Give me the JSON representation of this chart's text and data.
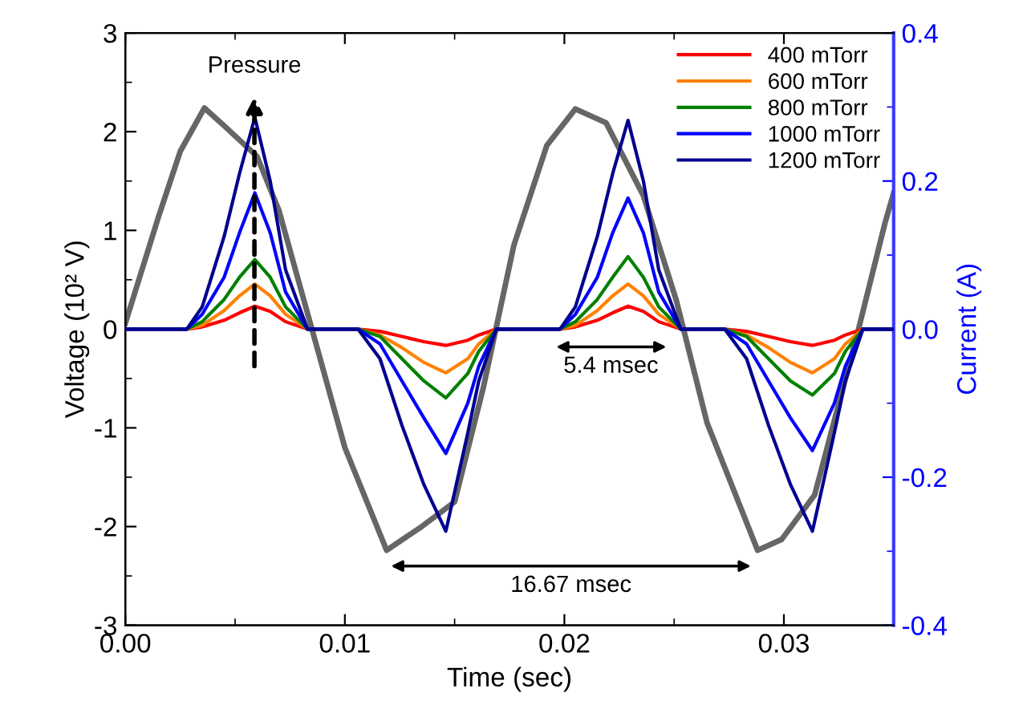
{
  "chart_data": {
    "type": "line",
    "xlabel": "Time (sec)",
    "ylabel": "Voltage (10² V)",
    "y2label": "Current (A)",
    "xlim": [
      0,
      0.035
    ],
    "xticks": [
      {
        "value": 0,
        "label": "0.00"
      },
      0.01,
      0.02,
      0.03
    ],
    "ylim": [
      -3,
      3
    ],
    "yticks": [
      -3,
      -2,
      -1,
      0,
      1,
      2,
      3
    ],
    "y2lim": [
      -0.4,
      0.4
    ],
    "y2ticks": [
      -0.4,
      -0.2,
      {
        "value": 0,
        "label": "0.0"
      },
      0.2,
      0.4
    ],
    "legend": "top right",
    "grid": false,
    "line_style": "solid",
    "marker": "none",
    "series": [
      {
        "color": "#666666",
        "x": [
          0,
          0.0015,
          0.0025,
          0.0036,
          0.0045,
          0.006,
          0.007,
          0.0085,
          0.01,
          0.0119,
          0.0135,
          0.015,
          0.0163,
          0.0177,
          0.0192,
          0.0205,
          0.0219,
          0.0236,
          0.0251,
          0.0265,
          0.0288,
          0.0299,
          0.0314,
          0.0334,
          0.0346,
          0.035
        ],
        "values": [
          0.06,
          1.13,
          1.8,
          2.24,
          2.06,
          1.75,
          1.2,
          0,
          -1.2,
          -2.24,
          -2.0,
          -1.75,
          -0.6,
          0.85,
          1.86,
          2.23,
          2.09,
          1.35,
          0.29,
          -0.95,
          -2.24,
          -2.13,
          -1.68,
          0,
          1.07,
          1.38
        ]
      },
      {
        "name": "400 mTorr",
        "color": "#ff0000",
        "axis": "y2",
        "x": [
          0,
          0.0028,
          0.0035,
          0.0045,
          0.0052,
          0.0059,
          0.0066,
          0.0073,
          0.0083,
          0.0106,
          0.0116,
          0.0126,
          0.0136,
          0.0146,
          0.0156,
          0.0161,
          0.0169,
          0.0198,
          0.0205,
          0.0215,
          0.0222,
          0.0229,
          0.0236,
          0.0243,
          0.0253,
          0.0273,
          0.0283,
          0.0293,
          0.0303,
          0.0313,
          0.0323,
          0.0328,
          0.0336,
          0.035
        ],
        "values": [
          0,
          0,
          0.003,
          0.012,
          0.022,
          0.031,
          0.024,
          0.01,
          0,
          0,
          -0.003,
          -0.01,
          -0.017,
          -0.022,
          -0.015,
          -0.008,
          0,
          0,
          0.003,
          0.012,
          0.022,
          0.031,
          0.024,
          0.01,
          0,
          0,
          -0.003,
          -0.01,
          -0.017,
          -0.022,
          -0.015,
          -0.008,
          0,
          0
        ]
      },
      {
        "name": "600 mTorr",
        "color": "#ff8000",
        "axis": "y2",
        "x": [
          0,
          0.0028,
          0.0035,
          0.0045,
          0.0052,
          0.0059,
          0.0066,
          0.0073,
          0.0083,
          0.0106,
          0.0116,
          0.0126,
          0.0136,
          0.0146,
          0.0156,
          0.0161,
          0.0169,
          0.0198,
          0.0205,
          0.0215,
          0.0222,
          0.0229,
          0.0236,
          0.0243,
          0.0253,
          0.0273,
          0.0283,
          0.0293,
          0.0303,
          0.0313,
          0.0323,
          0.0328,
          0.0336,
          0.035
        ],
        "values": [
          0,
          0,
          0.005,
          0.025,
          0.045,
          0.061,
          0.045,
          0.02,
          0,
          0,
          -0.008,
          -0.025,
          -0.045,
          -0.059,
          -0.04,
          -0.02,
          0,
          0,
          0.005,
          0.025,
          0.045,
          0.061,
          0.045,
          0.02,
          0,
          0,
          -0.008,
          -0.025,
          -0.045,
          -0.059,
          -0.04,
          -0.02,
          0,
          0
        ]
      },
      {
        "name": "800 mTorr",
        "color": "#008000",
        "axis": "y2",
        "x": [
          0,
          0.0028,
          0.0035,
          0.0045,
          0.0052,
          0.0059,
          0.0066,
          0.0073,
          0.0083,
          0.0106,
          0.0116,
          0.0126,
          0.0136,
          0.0146,
          0.0156,
          0.0161,
          0.0169,
          0.0198,
          0.0205,
          0.0215,
          0.0222,
          0.0229,
          0.0236,
          0.0243,
          0.0253,
          0.0273,
          0.0283,
          0.0293,
          0.0303,
          0.0313,
          0.0323,
          0.0328,
          0.0336,
          0.035
        ],
        "values": [
          0,
          0,
          0.01,
          0.04,
          0.07,
          0.094,
          0.07,
          0.03,
          0,
          0,
          -0.01,
          -0.04,
          -0.07,
          -0.093,
          -0.06,
          -0.03,
          0,
          0,
          0.01,
          0.04,
          0.07,
          0.098,
          0.07,
          0.03,
          0,
          0,
          -0.01,
          -0.04,
          -0.07,
          -0.089,
          -0.06,
          -0.03,
          0,
          0
        ]
      },
      {
        "name": "1000 mTorr",
        "color": "#0000ff",
        "axis": "y2",
        "x": [
          0,
          0.0028,
          0.0035,
          0.0045,
          0.0052,
          0.0059,
          0.0066,
          0.0073,
          0.0083,
          0.0106,
          0.0116,
          0.0126,
          0.0136,
          0.0146,
          0.0156,
          0.0161,
          0.0169,
          0.0198,
          0.0205,
          0.0215,
          0.0222,
          0.0229,
          0.0236,
          0.0243,
          0.0253,
          0.0273,
          0.0283,
          0.0293,
          0.0303,
          0.0313,
          0.0323,
          0.0328,
          0.0336,
          0.035
        ],
        "values": [
          0,
          0,
          0.02,
          0.07,
          0.13,
          0.184,
          0.13,
          0.05,
          0,
          0,
          -0.02,
          -0.07,
          -0.12,
          -0.168,
          -0.1,
          -0.05,
          0,
          0,
          0.02,
          0.07,
          0.13,
          0.177,
          0.13,
          0.05,
          0,
          0,
          -0.02,
          -0.07,
          -0.12,
          -0.164,
          -0.1,
          -0.05,
          0,
          0
        ]
      },
      {
        "name": "1200 mTorr",
        "color": "#000090",
        "axis": "y2",
        "x": [
          0,
          0.0028,
          0.0035,
          0.0045,
          0.0052,
          0.0059,
          0.0066,
          0.0073,
          0.0083,
          0.0106,
          0.0116,
          0.0126,
          0.0136,
          0.0146,
          0.0156,
          0.0161,
          0.0169,
          0.0198,
          0.0205,
          0.0215,
          0.0222,
          0.0229,
          0.0236,
          0.0243,
          0.0253,
          0.0273,
          0.0283,
          0.0293,
          0.0303,
          0.0313,
          0.0323,
          0.0328,
          0.0336,
          0.035
        ],
        "values": [
          0,
          0,
          0.03,
          0.125,
          0.21,
          0.286,
          0.2,
          0.08,
          0,
          0,
          -0.04,
          -0.13,
          -0.21,
          -0.273,
          -0.14,
          -0.07,
          0,
          0,
          0.03,
          0.125,
          0.21,
          0.282,
          0.2,
          0.08,
          0,
          0,
          -0.04,
          -0.13,
          -0.21,
          -0.273,
          -0.14,
          -0.07,
          0,
          0
        ]
      }
    ],
    "annotations": [
      "Pressure",
      "5.4 msec",
      "16.67 msec"
    ]
  }
}
